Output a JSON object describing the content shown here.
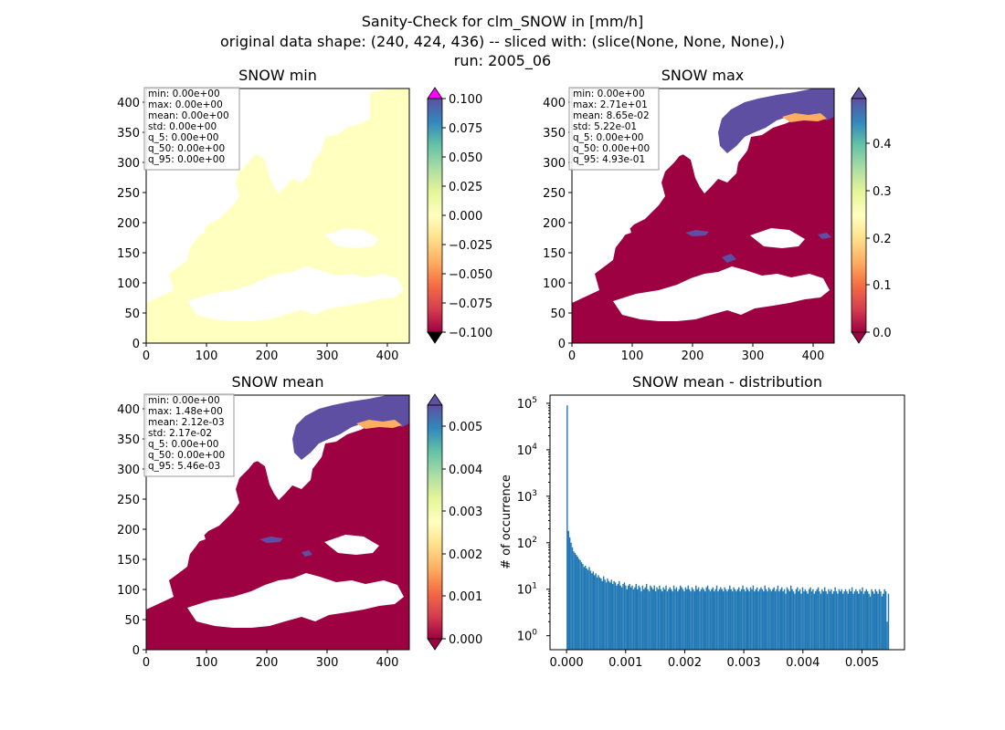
{
  "figure": {
    "title_lines": [
      "Sanity-Check for clm_SNOW in [mm/h]",
      "original data shape: (240, 424, 436) -- sliced with: (slice(None, None, None),)",
      "run: 2005_06"
    ]
  },
  "colors": {
    "spectral": [
      "#9e0142",
      "#d53e4f",
      "#f46d43",
      "#fdae61",
      "#fee08b",
      "#ffffbf",
      "#e6f598",
      "#abdda4",
      "#66c2a5",
      "#3288bd",
      "#5e4fa2"
    ],
    "over_min_panel": "#ff00ff",
    "under_min_panel": "#000000",
    "land_min_panel": "#ffffbf",
    "land_zero": "#9e0142",
    "snow_high": "#5e4fa2",
    "hist_bar": "#1f77b4"
  },
  "chart_data": [
    {
      "type": "heatmap",
      "title": "SNOW min",
      "xlim": [
        0,
        436
      ],
      "ylim": [
        0,
        424
      ],
      "xticks": [
        "0",
        "100",
        "200",
        "300",
        "400"
      ],
      "yticks": [
        "0",
        "50",
        "100",
        "150",
        "200",
        "250",
        "300",
        "350",
        "400"
      ],
      "colorbar": {
        "range": [
          -0.1,
          0.1
        ],
        "ticks": [
          "0.100",
          "0.075",
          "0.050",
          "0.025",
          "0.000",
          "−0.025",
          "−0.050",
          "−0.075",
          "−0.100"
        ],
        "extend": "both"
      },
      "stats": [
        "min: 0.00e+00",
        "max: 0.00e+00",
        "mean: 0.00e+00",
        "std: 0.00e+00",
        "q_5: 0.00e+00",
        "q_50: 0.00e+00",
        "q_95: 0.00e+00"
      ]
    },
    {
      "type": "heatmap",
      "title": "SNOW max",
      "xlim": [
        0,
        436
      ],
      "ylim": [
        0,
        424
      ],
      "xticks": [
        "0",
        "100",
        "200",
        "300",
        "400"
      ],
      "yticks": [
        "0",
        "50",
        "100",
        "150",
        "200",
        "250",
        "300",
        "350",
        "400"
      ],
      "colorbar": {
        "range": [
          0,
          0.49
        ],
        "ticks": [
          "0.4",
          "0.3",
          "0.2",
          "0.1",
          "0.0"
        ],
        "extend": "both"
      },
      "stats": [
        "min: 0.00e+00",
        "max: 2.71e+01",
        "mean: 8.65e-02",
        "std: 5.22e-01",
        "q_5: 0.00e+00",
        "q_50: 0.00e+00",
        "q_95: 4.93e-01"
      ]
    },
    {
      "type": "heatmap",
      "title": "SNOW mean",
      "xlim": [
        0,
        436
      ],
      "ylim": [
        0,
        424
      ],
      "xticks": [
        "0",
        "100",
        "200",
        "300",
        "400"
      ],
      "yticks": [
        "0",
        "50",
        "100",
        "150",
        "200",
        "250",
        "300",
        "350",
        "400"
      ],
      "colorbar": {
        "range": [
          0,
          0.0055
        ],
        "ticks": [
          "0.005",
          "0.004",
          "0.003",
          "0.002",
          "0.001",
          "0.000"
        ],
        "extend": "both"
      },
      "stats": [
        "min: 0.00e+00",
        "max: 1.48e+00",
        "mean: 2.12e-03",
        "std: 2.17e-02",
        "q_5: 0.00e+00",
        "q_50: 0.00e+00",
        "q_95: 5.46e-03"
      ]
    },
    {
      "type": "bar",
      "title": "SNOW mean - distribution",
      "xlabel": "",
      "ylabel": "# of occurrence",
      "xlim": [
        -0.00028,
        0.00572
      ],
      "yscale": "log",
      "ylim": [
        0.5,
        150000
      ],
      "xticks": [
        "0.000",
        "0.001",
        "0.002",
        "0.003",
        "0.004",
        "0.005"
      ],
      "yticks": [
        "10^0",
        "10^1",
        "10^2",
        "10^3",
        "10^4",
        "10^5"
      ],
      "bin_range": [
        0.0,
        0.00546
      ],
      "counts": [
        90000,
        180,
        130,
        100,
        80,
        65,
        60,
        55,
        50,
        45,
        42,
        38,
        35,
        30,
        32,
        28,
        26,
        30,
        25,
        22,
        24,
        20,
        22,
        18,
        20,
        18,
        17,
        15,
        19,
        16,
        14,
        17,
        15,
        14,
        16,
        13,
        15,
        14,
        12,
        13,
        15,
        12,
        11,
        13,
        14,
        12,
        10,
        12,
        13,
        11,
        12,
        10,
        11,
        13,
        10,
        12,
        11,
        9,
        12,
        10,
        11,
        13,
        10,
        9,
        12,
        11,
        10,
        12,
        9,
        11,
        10,
        12,
        10,
        9,
        11,
        10,
        12,
        9,
        10,
        11,
        10,
        9,
        12,
        10,
        11,
        9,
        10,
        12,
        11,
        10,
        9,
        11,
        10,
        12,
        10,
        9,
        11,
        10,
        9,
        12,
        10,
        11,
        9,
        10,
        11,
        10,
        9,
        11,
        12,
        10,
        9,
        10,
        11,
        9,
        10,
        12,
        9,
        10,
        11,
        10,
        9,
        11,
        10,
        9,
        10,
        12,
        10,
        9,
        11,
        10,
        9,
        10,
        11,
        9,
        10,
        12,
        10,
        9,
        11,
        10,
        9,
        11,
        10,
        12,
        9,
        10,
        11,
        9,
        10,
        11,
        10,
        9,
        12,
        10,
        9,
        11,
        10,
        9,
        10,
        11,
        9,
        10,
        12,
        9,
        10,
        11,
        9,
        10,
        8,
        11,
        10,
        9,
        12,
        10,
        9,
        8,
        10,
        11,
        9,
        10,
        8,
        11,
        9,
        10,
        9,
        8,
        10,
        11,
        9,
        10,
        8,
        9,
        10,
        11,
        9,
        8,
        10,
        9,
        11,
        9,
        8,
        10,
        9,
        10,
        8,
        9,
        11,
        9,
        8,
        10,
        9,
        10,
        8,
        9,
        10,
        9,
        8,
        10,
        9,
        11,
        8,
        9,
        10,
        9,
        8,
        10,
        9,
        11,
        8,
        9,
        10,
        9,
        8,
        7,
        10,
        9,
        8,
        10,
        9,
        8,
        10,
        9,
        7,
        8,
        10,
        9,
        2,
        8
      ]
    }
  ]
}
